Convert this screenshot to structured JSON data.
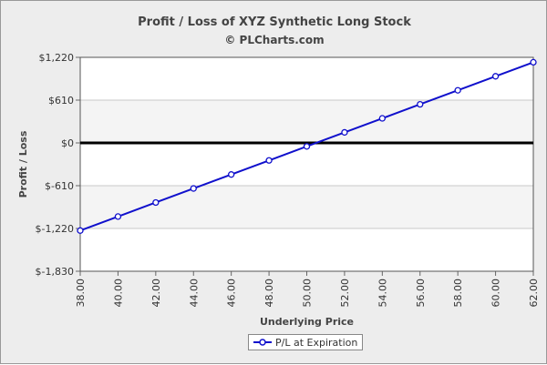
{
  "chart_data": {
    "type": "line",
    "title": "Profit / Loss of XYZ Synthetic Long Stock",
    "subtitle": "© PLCharts.com",
    "xlabel": "Underlying Price",
    "ylabel": "Profit / Loss",
    "x_ticks": [
      "38.00",
      "40.00",
      "42.00",
      "44.00",
      "46.00",
      "48.00",
      "50.00",
      "52.00",
      "54.00",
      "56.00",
      "58.00",
      "60.00",
      "62.00"
    ],
    "y_ticks": [
      {
        "value": 1220,
        "label": "$1,220"
      },
      {
        "value": 610,
        "label": "$610"
      },
      {
        "value": 0,
        "label": "$0"
      },
      {
        "value": -610,
        "label": "$-610"
      },
      {
        "value": -1220,
        "label": "$-1,220"
      },
      {
        "value": -1830,
        "label": "$-1,830"
      }
    ],
    "xlim": [
      38,
      62
    ],
    "ylim": [
      -1830,
      1220
    ],
    "grid": true,
    "legend_position": "bottom-center",
    "series": [
      {
        "name": "P/L at Expiration",
        "color": "#1010cc",
        "x": [
          38,
          40,
          42,
          44,
          46,
          48,
          50,
          52,
          54,
          56,
          58,
          60,
          62
        ],
        "y": [
          -1250,
          -1050,
          -850,
          -650,
          -450,
          -250,
          -50,
          150,
          350,
          550,
          750,
          950,
          1150
        ]
      }
    ],
    "zero_line": 0
  }
}
